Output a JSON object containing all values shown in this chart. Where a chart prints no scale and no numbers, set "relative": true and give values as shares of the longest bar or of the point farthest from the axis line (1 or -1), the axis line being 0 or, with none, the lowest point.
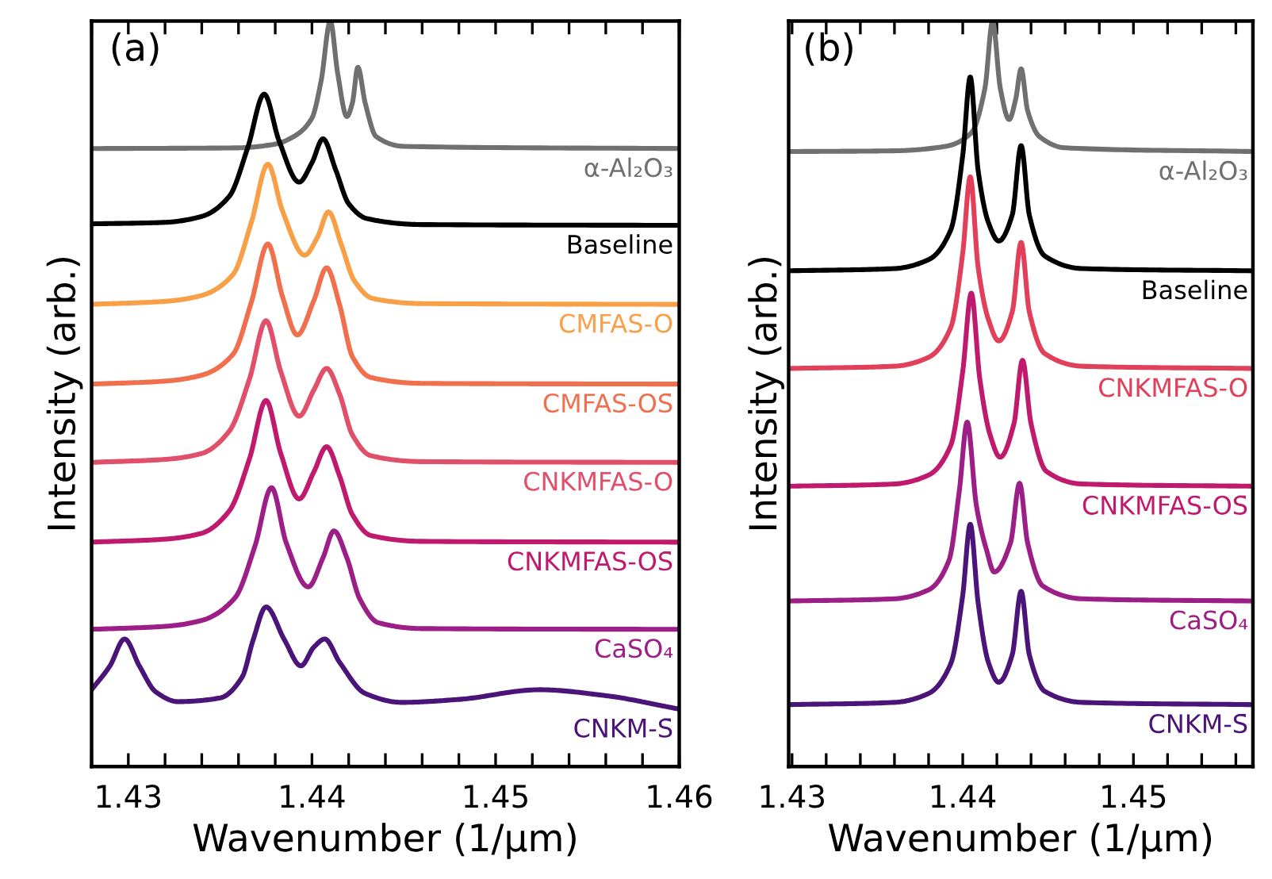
{
  "chart_data": [
    {
      "type": "line",
      "relative": true,
      "xlabel": "Wavenumber (1/μm)",
      "ylabel": "Intensity (arb.)",
      "annotations": [
        "(a)"
      ],
      "tick_labels": "x",
      "grid": false,
      "xlim": [
        1.428,
        1.46
      ],
      "xticks": [
        {
          "value": 1.428,
          "label": null
        },
        1.43,
        {
          "value": 1.432,
          "label": null
        },
        {
          "value": 1.434,
          "label": null
        },
        {
          "value": 1.436,
          "label": null
        },
        {
          "value": 1.438,
          "label": null
        },
        1.44,
        {
          "value": 1.442,
          "label": null
        },
        {
          "value": 1.444,
          "label": null
        },
        {
          "value": 1.446,
          "label": null
        },
        {
          "value": 1.448,
          "label": null
        },
        1.45,
        {
          "value": 1.452,
          "label": null
        },
        {
          "value": 1.454,
          "label": null
        },
        {
          "value": 1.456,
          "label": null
        },
        {
          "value": 1.458,
          "label": null
        },
        1.46
      ],
      "series": [
        {
          "name": "α-Al₂O₃",
          "color": "#707070",
          "x": [
            1.428,
            1.436,
            1.438,
            1.439,
            1.44,
            1.4405,
            1.441,
            1.4414,
            1.4419,
            1.4422,
            1.4425,
            1.4429,
            1.4435,
            1.445,
            1.46
          ],
          "values": [
            0.829,
            0.83,
            0.835,
            0.845,
            0.87,
            0.92,
            1.0,
            0.93,
            0.872,
            0.89,
            0.938,
            0.89,
            0.845,
            0.832,
            0.829
          ]
        },
        {
          "name": "Baseline",
          "color": "#000000",
          "x": [
            1.428,
            1.432,
            1.434,
            1.4355,
            1.4365,
            1.4374,
            1.4382,
            1.4393,
            1.44,
            1.4406,
            1.4413,
            1.442,
            1.443,
            1.446,
            1.46
          ],
          "values": [
            0.728,
            0.73,
            0.738,
            0.765,
            0.83,
            0.902,
            0.84,
            0.784,
            0.81,
            0.842,
            0.8,
            0.755,
            0.735,
            0.727,
            0.726
          ]
        },
        {
          "name": "CMFAS-O",
          "color": "#f8a048",
          "x": [
            1.428,
            1.432,
            1.434,
            1.4357,
            1.4367,
            1.4376,
            1.4384,
            1.4396,
            1.4403,
            1.4409,
            1.4416,
            1.4423,
            1.4433,
            1.446,
            1.46
          ],
          "values": [
            0.62,
            0.624,
            0.632,
            0.66,
            0.73,
            0.808,
            0.745,
            0.686,
            0.71,
            0.744,
            0.7,
            0.652,
            0.628,
            0.621,
            0.62
          ]
        },
        {
          "name": "CMFAS-OS̄",
          "color": "#f0704e",
          "x": [
            1.428,
            1.432,
            1.434,
            1.4357,
            1.4367,
            1.4376,
            1.4384,
            1.4392,
            1.4401,
            1.4408,
            1.4415,
            1.4422,
            1.4432,
            1.446,
            1.46
          ],
          "values": [
            0.513,
            0.517,
            0.525,
            0.553,
            0.623,
            0.701,
            0.63,
            0.579,
            0.625,
            0.669,
            0.62,
            0.55,
            0.522,
            0.514,
            0.513
          ]
        },
        {
          "name": "CNKMFAS-O",
          "color": "#e0506a",
          "x": [
            1.428,
            1.432,
            1.434,
            1.4355,
            1.4366,
            1.4375,
            1.4383,
            1.4393,
            1.4401,
            1.4408,
            1.4415,
            1.4422,
            1.4432,
            1.446,
            1.46
          ],
          "values": [
            0.408,
            0.412,
            0.42,
            0.45,
            0.52,
            0.598,
            0.53,
            0.47,
            0.505,
            0.534,
            0.5,
            0.445,
            0.417,
            0.409,
            0.408
          ]
        },
        {
          "name": "CNKMFAS-OS̄",
          "color": "#c01a6e",
          "x": [
            1.428,
            1.432,
            1.434,
            1.4355,
            1.4366,
            1.4375,
            1.4383,
            1.4393,
            1.4401,
            1.4408,
            1.4415,
            1.4422,
            1.4432,
            1.446,
            1.46
          ],
          "values": [
            0.301,
            0.305,
            0.313,
            0.343,
            0.413,
            0.491,
            0.42,
            0.359,
            0.395,
            0.429,
            0.39,
            0.338,
            0.31,
            0.302,
            0.301
          ]
        },
        {
          "name": "CaSO₄",
          "color": "#9c1f87",
          "x": [
            1.428,
            1.432,
            1.434,
            1.4358,
            1.4369,
            1.4378,
            1.4386,
            1.4398,
            1.4406,
            1.4412,
            1.4419,
            1.4426,
            1.4436,
            1.446,
            1.46
          ],
          "values": [
            0.184,
            0.188,
            0.196,
            0.226,
            0.296,
            0.374,
            0.3,
            0.241,
            0.28,
            0.316,
            0.28,
            0.225,
            0.193,
            0.185,
            0.184
          ]
        },
        {
          "name": "CNKM-S̄",
          "color": "#4b1478",
          "x": [
            1.428,
            1.429,
            1.4298,
            1.4306,
            1.4315,
            1.4327,
            1.435,
            1.4362,
            1.4368,
            1.4375,
            1.4385,
            1.4394,
            1.4401,
            1.4407,
            1.4415,
            1.4429,
            1.4449,
            1.448,
            1.4524,
            1.456,
            1.46
          ],
          "values": [
            0.103,
            0.135,
            0.171,
            0.135,
            0.1,
            0.087,
            0.092,
            0.12,
            0.17,
            0.214,
            0.17,
            0.135,
            0.16,
            0.171,
            0.14,
            0.098,
            0.086,
            0.09,
            0.103,
            0.095,
            0.077
          ]
        }
      ]
    },
    {
      "type": "line",
      "relative": true,
      "xlabel": "Wavenumber (1/μm)",
      "ylabel": "Intensity (arb.)",
      "annotations": [
        "(b)"
      ],
      "tick_labels": "x",
      "grid": false,
      "xlim": [
        1.4298,
        1.457
      ],
      "xticks": [
        1.43,
        {
          "value": 1.432,
          "label": null
        },
        {
          "value": 1.434,
          "label": null
        },
        {
          "value": 1.436,
          "label": null
        },
        {
          "value": 1.438,
          "label": null
        },
        1.44,
        {
          "value": 1.442,
          "label": null
        },
        {
          "value": 1.444,
          "label": null
        },
        {
          "value": 1.446,
          "label": null
        },
        {
          "value": 1.448,
          "label": null
        },
        1.45,
        {
          "value": 1.452,
          "label": null
        },
        {
          "value": 1.454,
          "label": null
        },
        {
          "value": 1.456,
          "label": null
        }
      ],
      "series": [
        {
          "name": "α-Al₂O₃",
          "color": "#707070",
          "x": [
            1.4298,
            1.436,
            1.439,
            1.4405,
            1.4413,
            1.44175,
            1.4422,
            1.44272,
            1.4431,
            1.44342,
            1.4438,
            1.4445,
            1.446,
            1.457
          ],
          "values": [
            0.825,
            0.826,
            0.832,
            0.85,
            0.91,
            1.0,
            0.91,
            0.868,
            0.895,
            0.936,
            0.88,
            0.845,
            0.83,
            0.825
          ]
        },
        {
          "name": "Baseline",
          "color": "#000000",
          "x": [
            1.4298,
            1.436,
            1.438,
            1.4393,
            1.44,
            1.44044,
            1.4409,
            1.4415,
            1.44211,
            1.4429,
            1.44342,
            1.4439,
            1.4448,
            1.447,
            1.457
          ],
          "values": [
            0.665,
            0.668,
            0.68,
            0.72,
            0.82,
            0.925,
            0.8,
            0.73,
            0.705,
            0.74,
            0.833,
            0.74,
            0.685,
            0.668,
            0.665
          ]
        },
        {
          "name": "CNKMFAS-O",
          "color": "#e0405a",
          "x": [
            1.4298,
            1.436,
            1.438,
            1.4393,
            1.44,
            1.44044,
            1.4409,
            1.4415,
            1.44211,
            1.4429,
            1.44342,
            1.4439,
            1.4448,
            1.447,
            1.457
          ],
          "values": [
            0.534,
            0.537,
            0.549,
            0.589,
            0.689,
            0.791,
            0.67,
            0.6,
            0.571,
            0.61,
            0.703,
            0.61,
            0.554,
            0.537,
            0.534
          ]
        },
        {
          "name": "CNKMFAS-OS̄",
          "color": "#c01a6e",
          "x": [
            1.4298,
            1.436,
            1.438,
            1.4393,
            1.44,
            1.4405,
            1.441,
            1.4416,
            1.44219,
            1.443,
            1.4435,
            1.444,
            1.4449,
            1.447,
            1.457
          ],
          "values": [
            0.376,
            0.379,
            0.391,
            0.431,
            0.53,
            0.635,
            0.52,
            0.445,
            0.415,
            0.46,
            0.545,
            0.46,
            0.396,
            0.379,
            0.376
          ]
        },
        {
          "name": "CaSO₄",
          "color": "#9c1f87",
          "x": [
            1.4298,
            1.436,
            1.438,
            1.4392,
            1.4398,
            1.44026,
            1.4408,
            1.4414,
            1.44184,
            1.4428,
            1.44333,
            1.4438,
            1.4447,
            1.447,
            1.457
          ],
          "values": [
            0.222,
            0.225,
            0.237,
            0.277,
            0.37,
            0.462,
            0.35,
            0.29,
            0.261,
            0.3,
            0.38,
            0.3,
            0.242,
            0.225,
            0.222
          ]
        },
        {
          "name": "CNKM-S̄",
          "color": "#4b1478",
          "x": [
            1.4298,
            1.436,
            1.438,
            1.4393,
            1.44,
            1.44044,
            1.4409,
            1.4415,
            1.44211,
            1.4429,
            1.44342,
            1.4439,
            1.4448,
            1.447,
            1.457
          ],
          "values": [
            0.083,
            0.086,
            0.098,
            0.138,
            0.23,
            0.325,
            0.22,
            0.14,
            0.113,
            0.15,
            0.235,
            0.15,
            0.101,
            0.086,
            0.083
          ]
        }
      ]
    }
  ]
}
